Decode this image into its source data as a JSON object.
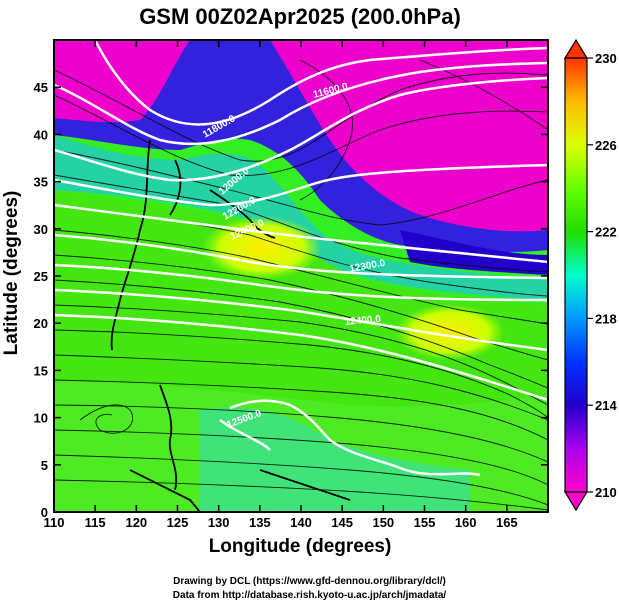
{
  "title": "GSM 00Z02Apr2025 (200.0hPa)",
  "x_axis": {
    "label": "Longitude (degrees)",
    "ticks": [
      "110",
      "115",
      "120",
      "125",
      "130",
      "135",
      "140",
      "145",
      "150",
      "155",
      "160",
      "165"
    ],
    "range": [
      110,
      170
    ]
  },
  "y_axis": {
    "label": "Latitude (degrees)",
    "ticks": [
      "0",
      "5",
      "10",
      "15",
      "20",
      "25",
      "30",
      "35",
      "40",
      "45"
    ],
    "range": [
      0,
      50
    ]
  },
  "colorbar": {
    "labels": [
      "210",
      "214",
      "218",
      "222",
      "226",
      "230"
    ],
    "range": [
      210,
      230
    ],
    "colors": [
      "#ff00cc",
      "#9900ff",
      "#0000cc",
      "#0099ff",
      "#00ffcc",
      "#33dd00",
      "#66ff00",
      "#ccff00",
      "#ffff00",
      "#ffbb00",
      "#ff4400"
    ]
  },
  "contour_labels": [
    "11600.0",
    "11800.0",
    "12000.0",
    "12200.0",
    "12400.0",
    "12300.0",
    "12400.0",
    "12500.0"
  ],
  "credits": {
    "line1": "Drawing by DCL (https://www.gfd-dennou.org/library/dcl/)",
    "line2": "Data from http://database.rish.kyoto-u.ac.jp/arch/jmadata/"
  }
}
